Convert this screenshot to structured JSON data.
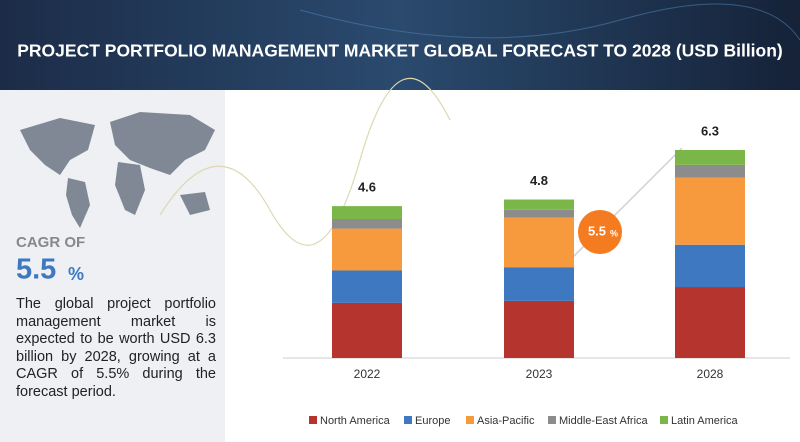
{
  "chart_data": {
    "type": "stacked-bar",
    "title": "PROJECT PORTFOLIO MANAGEMENT MARKET GLOBAL FORECAST TO 2028 (USD Billion)",
    "categories": [
      "2022",
      "2023",
      "2028"
    ],
    "series": [
      {
        "name": "North America",
        "color": "#b5342e",
        "values": [
          1.67,
          1.73,
          2.15
        ]
      },
      {
        "name": "Europe",
        "color": "#3d78c1",
        "values": [
          0.98,
          1.02,
          1.28
        ]
      },
      {
        "name": "Asia-Pacific",
        "color": "#f79a3e",
        "values": [
          1.27,
          1.5,
          2.03
        ]
      },
      {
        "name": "Middle-East Africa",
        "color": "#8c8c8c",
        "values": [
          0.29,
          0.24,
          0.39
        ]
      },
      {
        "name": "Latin America",
        "color": "#7ab648",
        "values": [
          0.39,
          0.31,
          0.45
        ]
      }
    ],
    "totals": [
      4.6,
      4.8,
      6.3
    ],
    "cagr": {
      "prefix": "CAGR OF",
      "value": "5.5",
      "unit": "%"
    },
    "description": "The global project portfolio management market is expected to be worth USD 6.3 billion by 2028, growing at a CAGR of 5.5% during the forecast period."
  }
}
